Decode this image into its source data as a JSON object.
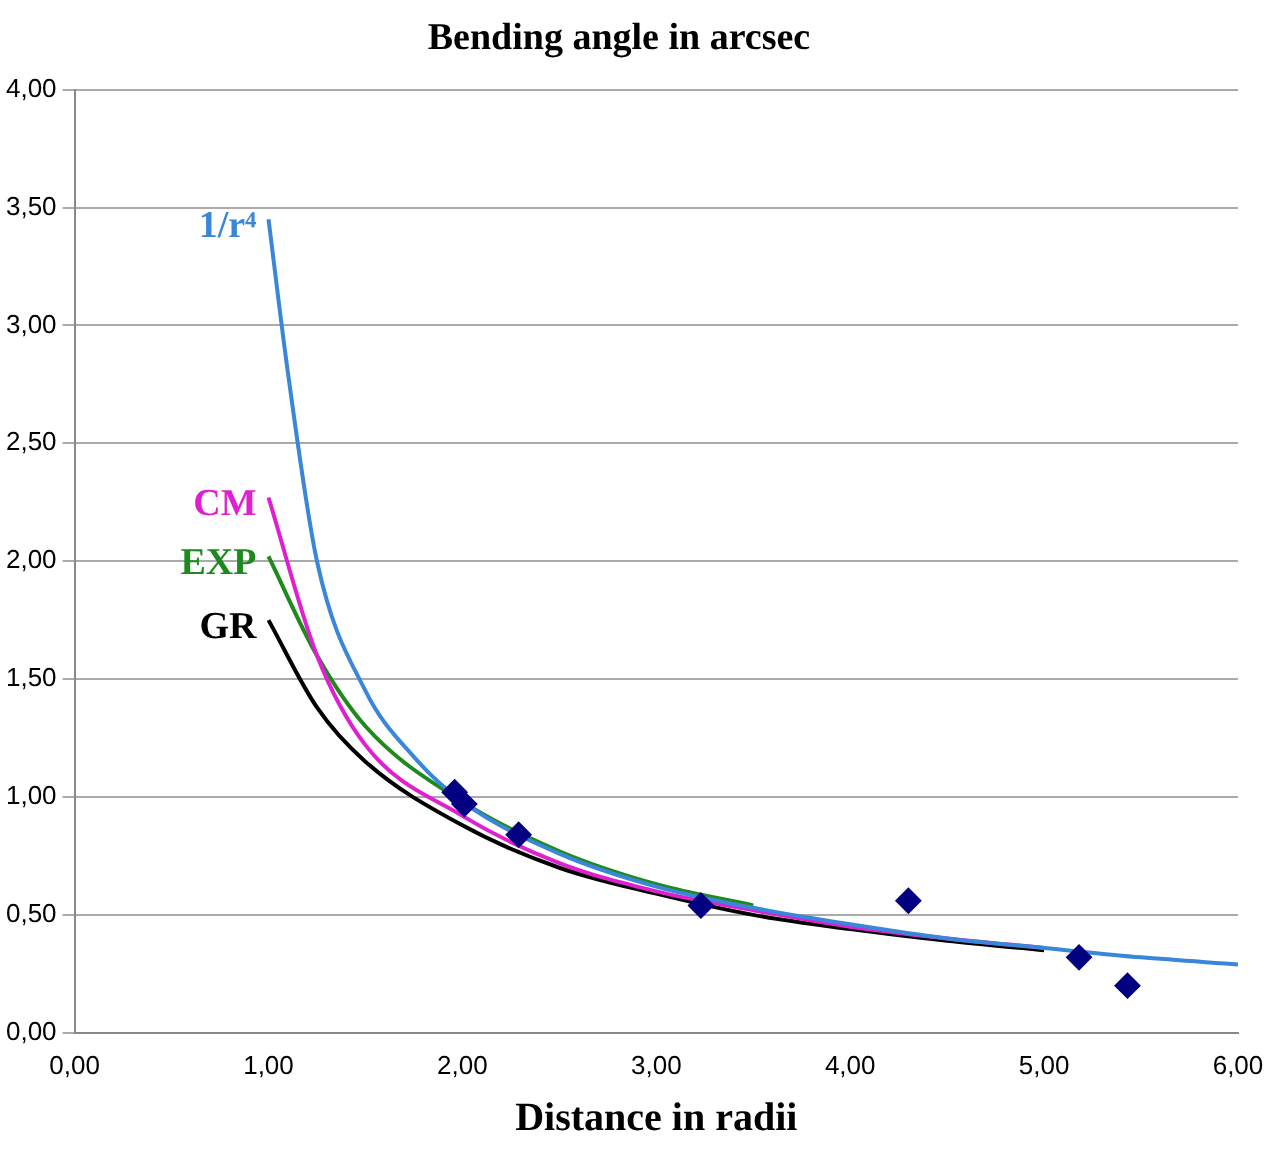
{
  "chart_data": {
    "type": "line",
    "title": "Bending angle in arcsec",
    "xlabel": "Distance in radii",
    "xlim": [
      0,
      6
    ],
    "xticks": [
      {
        "value": 0,
        "label": "0,00"
      },
      {
        "value": 1,
        "label": "1,00"
      },
      {
        "value": 2,
        "label": "2,00"
      },
      {
        "value": 3,
        "label": "3,00"
      },
      {
        "value": 4,
        "label": "4,00"
      },
      {
        "value": 5,
        "label": "5,00"
      },
      {
        "value": 6,
        "label": "6,00"
      }
    ],
    "ylim": [
      0,
      4
    ],
    "yticks": [
      {
        "value": 0,
        "label": "0,00"
      },
      {
        "value": 0.5,
        "label": "0,50"
      },
      {
        "value": 1,
        "label": "1,00"
      },
      {
        "value": 1.5,
        "label": "1,50"
      },
      {
        "value": 2,
        "label": "2,00"
      },
      {
        "value": 2.5,
        "label": "2,50"
      },
      {
        "value": 3,
        "label": "3,00"
      },
      {
        "value": 3.5,
        "label": "3,50"
      },
      {
        "value": 4,
        "label": "4,00"
      }
    ],
    "grid": "y",
    "legend": false,
    "marker": "none",
    "series": [
      {
        "name": "1/r⁴",
        "color": "#3a86d8",
        "x": [
          1,
          1.1,
          1.25,
          1.5,
          1.75,
          2,
          2.5,
          3,
          3.5,
          4,
          4.5,
          5,
          5.5,
          6
        ],
        "values": [
          3.45,
          2.8,
          2.0,
          1.45,
          1.17,
          0.98,
          0.76,
          0.62,
          0.53,
          0.46,
          0.4,
          0.36,
          0.32,
          0.29
        ]
      },
      {
        "name": "CM",
        "color": "#e020d0",
        "x": [
          1,
          1.25,
          1.5,
          2,
          2.5,
          3,
          3.5,
          4,
          4.5,
          5
        ],
        "values": [
          2.27,
          1.6,
          1.22,
          0.92,
          0.72,
          0.6,
          0.52,
          0.45,
          0.4,
          0.36
        ]
      },
      {
        "name": "EXP",
        "color": "#1e8a1e",
        "x": [
          1,
          1.25,
          1.5,
          2,
          2.5,
          3,
          3.5
        ],
        "values": [
          2.02,
          1.6,
          1.3,
          0.98,
          0.77,
          0.63,
          0.54
        ]
      },
      {
        "name": "GR",
        "color": "#000000",
        "x": [
          1,
          1.25,
          1.5,
          2,
          2.5,
          3,
          3.5,
          4,
          4.5,
          5
        ],
        "values": [
          1.75,
          1.38,
          1.15,
          0.88,
          0.7,
          0.59,
          0.5,
          0.44,
          0.39,
          0.35
        ]
      },
      {
        "type": "scatter",
        "marker": "diamond",
        "color": "#000080",
        "x": [
          1.96,
          2.01,
          2.29,
          3.23,
          4.3,
          5.18,
          5.43
        ],
        "values": [
          1.02,
          0.97,
          0.84,
          0.54,
          0.56,
          0.32,
          0.2
        ]
      }
    ]
  }
}
